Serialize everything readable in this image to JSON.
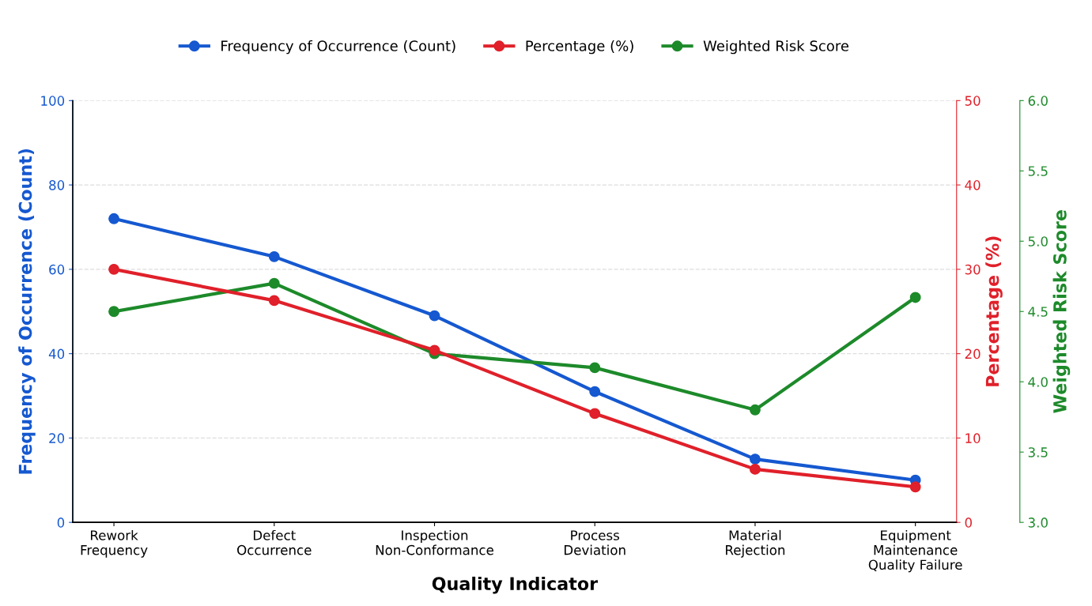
{
  "chart_data": {
    "type": "line",
    "xlabel": "Quality Indicator",
    "ylabel": "Frequency of Occurrence (Count)",
    "y2label": "Percentage (%)",
    "y3label": "Weighted Risk Score",
    "categories": [
      "Rework\nFrequency",
      "Defect\nOccurrence",
      "Inspection\nNon-Conformance",
      "Process\nDeviation",
      "Material\nRejection",
      "Equipment\nMaintenance\nQuality Failure"
    ],
    "series": [
      {
        "name": "Frequency of Occurrence (Count)",
        "color": "#1558d0",
        "values": [
          72,
          63,
          49,
          31,
          15,
          10
        ]
      },
      {
        "name": "Percentage (%)",
        "color": "#e0202a",
        "axis": "y2",
        "values": [
          30,
          26.3,
          20.4,
          12.9,
          6.3,
          4.2
        ]
      },
      {
        "name": "Weighted Risk Score",
        "color": "#1d8a2a",
        "axis": "y3",
        "values": [
          4.5,
          4.7,
          4.2,
          4.1,
          3.8,
          4.6
        ]
      }
    ],
    "ylim": [
      0,
      100
    ],
    "yticks": [
      0,
      20,
      40,
      60,
      80,
      100
    ],
    "y2lim": [
      0,
      50
    ],
    "y2ticks": [
      0,
      10,
      20,
      30,
      40,
      50
    ],
    "y3lim": [
      3.0,
      6.0
    ],
    "y3ticks": [
      {
        "value": 3.0,
        "label": "3.0"
      },
      {
        "value": 3.5,
        "label": "3.5"
      },
      {
        "value": 4.0,
        "label": "4.0"
      },
      {
        "value": 4.5,
        "label": "4.5"
      },
      {
        "value": 5.0,
        "label": "5.0"
      },
      {
        "value": 5.5,
        "label": "5.5"
      },
      {
        "value": 6.0,
        "label": "6.0"
      }
    ],
    "grid": "y",
    "legend": "top",
    "marker": "circle",
    "line_style": "solid"
  }
}
